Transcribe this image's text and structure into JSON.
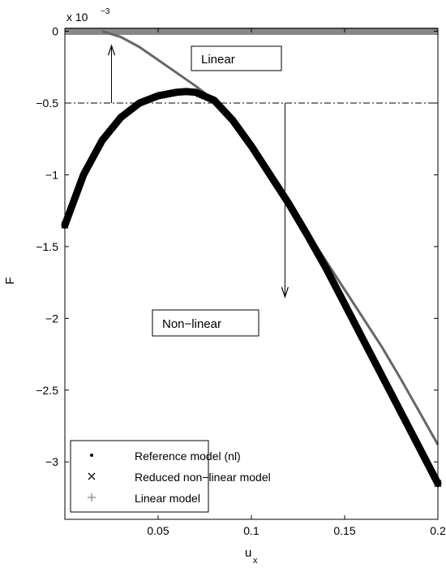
{
  "chart_data": {
    "type": "line",
    "title": "",
    "xlabel": "u",
    "xlabel_subscript": "x",
    "ylabel": "F",
    "exponent_label": "x 10",
    "exponent_power": "−3",
    "xlim": [
      0,
      0.2
    ],
    "ylim": [
      -3.4,
      0.02
    ],
    "x_ticks": [
      0.05,
      0.1,
      0.15,
      0.2
    ],
    "x_tick_labels": [
      "0.05",
      "0.1",
      "0.15",
      "0.2"
    ],
    "y_ticks": [
      0,
      -0.5,
      -1,
      -1.5,
      -2,
      -2.5,
      -3
    ],
    "y_tick_labels": [
      "0",
      "−0.5",
      "−1",
      "−1.5",
      "−2",
      "−2.5",
      "−3"
    ],
    "threshold_y": -0.5,
    "annotations": {
      "linear": "Linear",
      "nonlinear": "Non−linear"
    },
    "arrows": [
      {
        "x": 0.025,
        "from_y": -0.5,
        "to_y": -0.1,
        "direction": "up"
      },
      {
        "x": 0.118,
        "from_y": -0.5,
        "to_y": -1.85,
        "direction": "down"
      }
    ],
    "series": [
      {
        "name": "Reference model (nl)",
        "marker": "dot",
        "color": "#666666",
        "x": [
          0.02,
          0.03,
          0.04,
          0.05,
          0.06,
          0.07,
          0.08,
          0.09,
          0.1,
          0.11,
          0.12,
          0.13,
          0.14,
          0.15,
          0.16,
          0.17,
          0.18,
          0.19,
          0.2
        ],
        "y": [
          0,
          -0.04,
          -0.11,
          -0.2,
          -0.29,
          -0.38,
          -0.48,
          -0.63,
          -0.82,
          -1.0,
          -1.2,
          -1.4,
          -1.6,
          -1.8,
          -2.0,
          -2.2,
          -2.42,
          -2.65,
          -2.88
        ]
      },
      {
        "name": "Reduced non−linear model",
        "marker": "x",
        "color": "#000000",
        "x": [
          0.0,
          0.01,
          0.02,
          0.03,
          0.04,
          0.05,
          0.06,
          0.065,
          0.07,
          0.08,
          0.09,
          0.1,
          0.11,
          0.12,
          0.13,
          0.14,
          0.15,
          0.16,
          0.17,
          0.18,
          0.19,
          0.2
        ],
        "y": [
          -1.35,
          -1.0,
          -0.76,
          -0.6,
          -0.5,
          -0.45,
          -0.425,
          -0.42,
          -0.425,
          -0.48,
          -0.62,
          -0.8,
          -1.0,
          -1.2,
          -1.42,
          -1.65,
          -1.9,
          -2.15,
          -2.4,
          -2.65,
          -2.9,
          -3.15
        ]
      },
      {
        "name": "Linear model",
        "marker": "+",
        "color": "#888888",
        "x": [
          0.0,
          0.2
        ],
        "y": [
          0,
          0
        ]
      }
    ],
    "legend_position": "bottom-left"
  }
}
